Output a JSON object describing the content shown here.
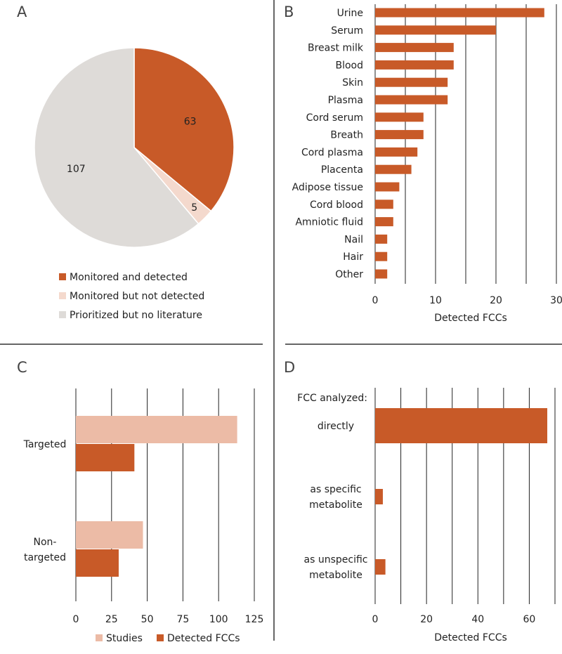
{
  "colors": {
    "detected": "#c85a28",
    "not_detected": "#f4d9cd",
    "no_literature": "#dedbd8",
    "studies": "#ecbba6",
    "grid": "#222222",
    "divider": "#333333"
  },
  "panels": {
    "A": {
      "letter": "A"
    },
    "B": {
      "letter": "B"
    },
    "C": {
      "letter": "C"
    },
    "D": {
      "letter": "D"
    }
  },
  "chart_data": [
    {
      "panel": "A",
      "type": "pie",
      "slices": [
        {
          "label": "Monitored and detected",
          "value": 63,
          "color_key": "detected"
        },
        {
          "label": "Monitored but not detected",
          "value": 5,
          "color_key": "not_detected"
        },
        {
          "label": "Prioritized but no literature",
          "value": 107,
          "color_key": "no_literature"
        }
      ],
      "legend": [
        "Monitored and detected",
        "Monitored but not detected",
        "Prioritized but no literature"
      ],
      "legend_position": "bottom"
    },
    {
      "panel": "B",
      "type": "bar",
      "orientation": "horizontal",
      "categories": [
        "Urine",
        "Serum",
        "Breast milk",
        "Blood",
        "Skin",
        "Plasma",
        "Cord serum",
        "Breath",
        "Cord plasma",
        "Placenta",
        "Adipose tissue",
        "Cord blood",
        "Amniotic fluid",
        "Nail",
        "Hair",
        "Other"
      ],
      "values": [
        28,
        20,
        13,
        13,
        12,
        12,
        8,
        8,
        7,
        6,
        4,
        3,
        3,
        2,
        2,
        2
      ],
      "xlabel": "Detected FCCs",
      "xlim": [
        0,
        30
      ],
      "xticks": [
        0,
        10,
        20,
        30
      ],
      "grid_step": 5
    },
    {
      "panel": "C",
      "type": "bar",
      "orientation": "horizontal",
      "categories": [
        "Targeted",
        "Non-targeted"
      ],
      "category_lines": [
        [
          "Targeted"
        ],
        [
          "Non-",
          "targeted"
        ]
      ],
      "series": [
        {
          "name": "Studies",
          "values": [
            113,
            47
          ],
          "color_key": "studies"
        },
        {
          "name": "Detected FCCs",
          "values": [
            41,
            30
          ],
          "color_key": "detected"
        }
      ],
      "xlim": [
        0,
        125
      ],
      "xticks": [
        0,
        25,
        50,
        75,
        100,
        125
      ],
      "legend": [
        "Studies",
        "Detected FCCs"
      ],
      "legend_position": "bottom"
    },
    {
      "panel": "D",
      "type": "bar",
      "orientation": "horizontal",
      "header": "FCC analyzed:",
      "categories": [
        "directly",
        "as specific metabolite",
        "as unspecific metabolite"
      ],
      "category_lines": [
        [
          "directly"
        ],
        [
          "as specific",
          "metabolite"
        ],
        [
          "as unspecific",
          "metabolite"
        ]
      ],
      "values": [
        67,
        3,
        4
      ],
      "xlabel": "Detected FCCs",
      "xlim": [
        0,
        70
      ],
      "xticks": [
        0,
        20,
        40,
        60
      ],
      "grid_step": 10
    }
  ]
}
